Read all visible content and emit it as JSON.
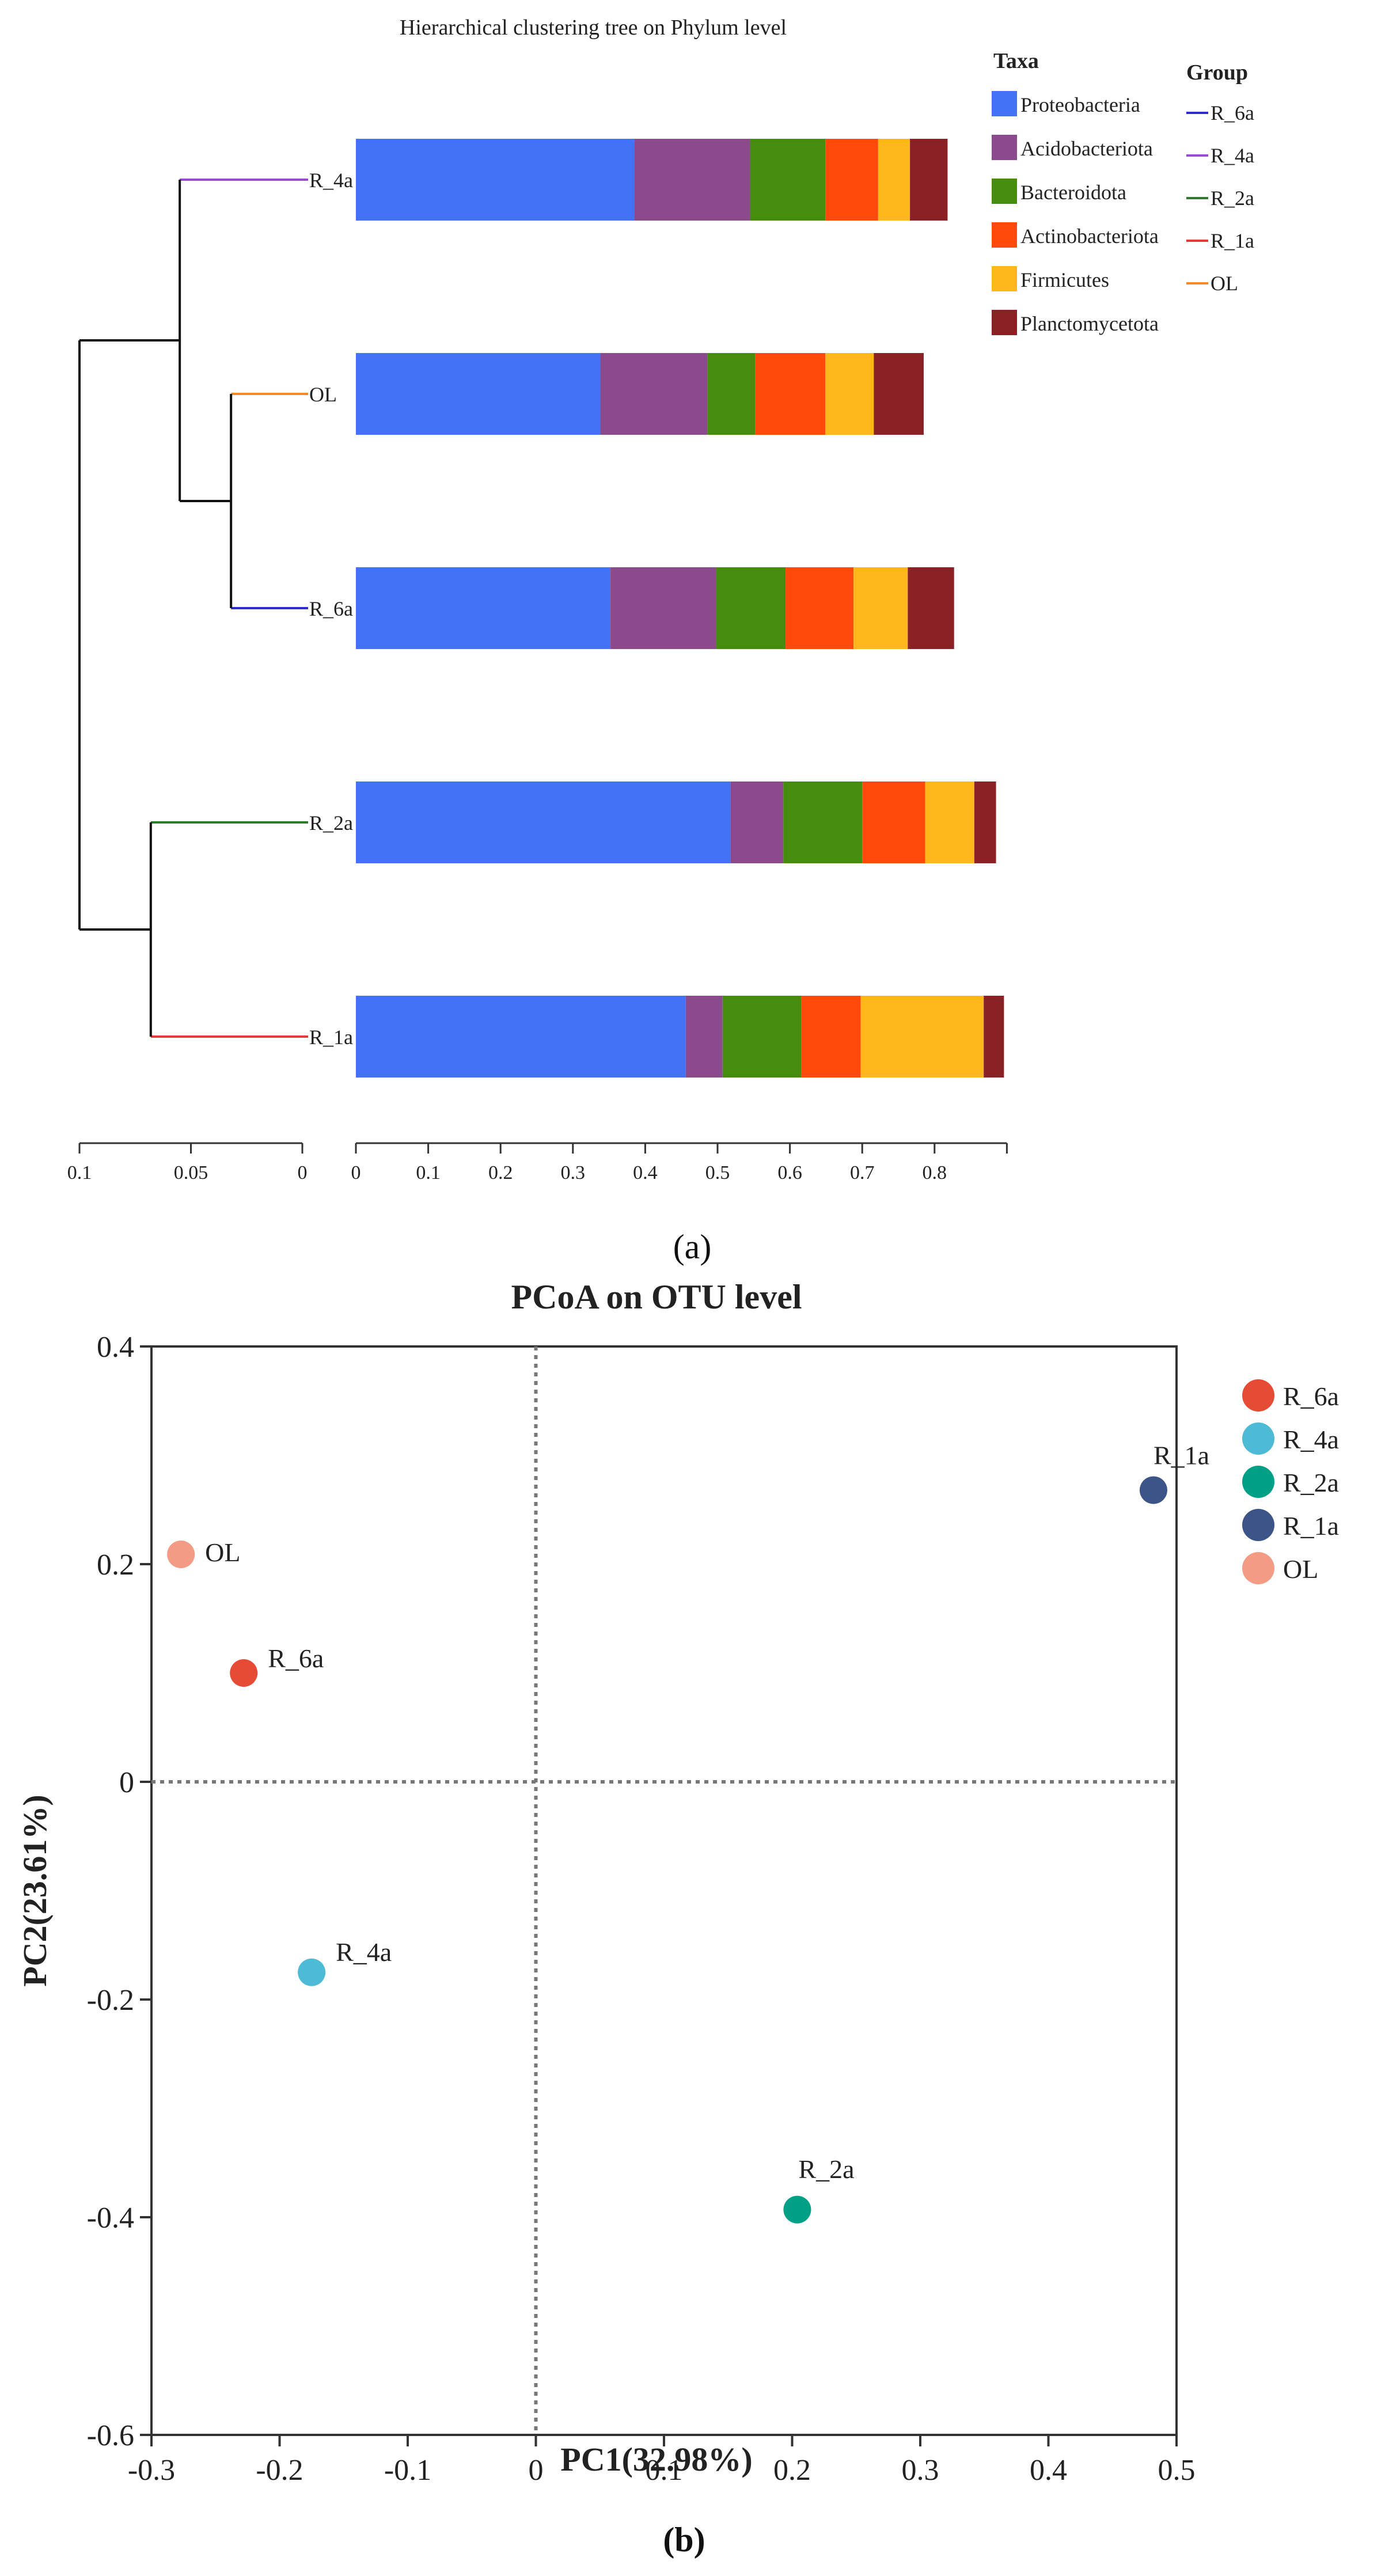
{
  "chart_data": [
    {
      "type": "bar",
      "subtype": "stacked-horizontal-with-dendrogram",
      "title": "Hierarchical clustering tree on Phylum level",
      "categories": [
        "R_4a",
        "OL",
        "R_6a",
        "R_2a",
        "R_1a"
      ],
      "series": [
        {
          "name": "Proteobacteria",
          "color": "#4472f6",
          "values": [
            0.385,
            0.338,
            0.352,
            0.518,
            0.456
          ]
        },
        {
          "name": "Acidobacteriota",
          "color": "#8b4a8c",
          "values": [
            0.16,
            0.148,
            0.146,
            0.073,
            0.051
          ]
        },
        {
          "name": "Bacteroidota",
          "color": "#468c0f",
          "values": [
            0.104,
            0.066,
            0.096,
            0.109,
            0.109
          ]
        },
        {
          "name": "Actinobacteriota",
          "color": "#ff4a0c",
          "values": [
            0.073,
            0.097,
            0.094,
            0.087,
            0.082
          ]
        },
        {
          "name": "Firmicutes",
          "color": "#ffb81c",
          "values": [
            0.044,
            0.067,
            0.075,
            0.068,
            0.17
          ]
        },
        {
          "name": "Planctomycetota",
          "color": "#8a2124",
          "values": [
            0.052,
            0.069,
            0.064,
            0.03,
            0.028
          ]
        }
      ],
      "xlim": [
        0,
        0.9
      ],
      "xticks": [
        "0",
        "0.1",
        "0.2",
        "0.3",
        "0.4",
        "0.5",
        "0.6",
        "0.7",
        "0.8"
      ],
      "legend_title": "Taxa",
      "group_legend": {
        "title": "Group",
        "items": [
          {
            "label": "R_6a",
            "color": "#2c2ccf"
          },
          {
            "label": "R_4a",
            "color": "#9b4bd1"
          },
          {
            "label": "R_2a",
            "color": "#2d7a2d"
          },
          {
            "label": "R_1a",
            "color": "#e53a3a"
          },
          {
            "label": "OL",
            "color": "#f08a2c"
          }
        ]
      },
      "dendrogram": {
        "scale_ticks": [
          "0.1",
          "0.05",
          "0"
        ],
        "scale_range": [
          0.1,
          0
        ],
        "root_height": 0.1,
        "clusters": [
          {
            "members": [
              "OL",
              "R_6a"
            ],
            "height": 0.032
          },
          {
            "members": [
              "R_4a",
              "OL",
              "R_6a"
            ],
            "height": 0.055
          },
          {
            "members": [
              "R_2a",
              "R_1a"
            ],
            "height": 0.068
          }
        ],
        "leaf_colors": {
          "R_4a": "#9b4bd1",
          "OL": "#f08a2c",
          "R_6a": "#2c2ccf",
          "R_2a": "#2d7a2d",
          "R_1a": "#e53a3a"
        }
      },
      "panel_label": "(a)"
    },
    {
      "type": "scatter",
      "title": "PCoA on OTU level",
      "xlabel": "PC1(32.98%)",
      "ylabel": "PC2(23.61%)",
      "xlim": [
        -0.3,
        0.5
      ],
      "ylim": [
        -0.6,
        0.4
      ],
      "xticks": [
        "-0.3",
        "-0.2",
        "-0.1",
        "0",
        "0.1",
        "0.2",
        "0.3",
        "0.4",
        "0.5"
      ],
      "yticks": [
        "0.4",
        "0.2",
        "0",
        "-0.2",
        "-0.4",
        "-0.6"
      ],
      "points": [
        {
          "label": "OL",
          "x": -0.277,
          "y": 0.209,
          "color": "#f39b84"
        },
        {
          "label": "R_6a",
          "x": -0.228,
          "y": 0.1,
          "color": "#e64b35"
        },
        {
          "label": "R_4a",
          "x": -0.175,
          "y": -0.175,
          "color": "#4dbbd5"
        },
        {
          "label": "R_2a",
          "x": 0.204,
          "y": -0.393,
          "color": "#00a087"
        },
        {
          "label": "R_1a",
          "x": 0.482,
          "y": 0.268,
          "color": "#3c5488"
        }
      ],
      "legend": [
        {
          "label": "R_6a",
          "color": "#e64b35"
        },
        {
          "label": "R_4a",
          "color": "#4dbbd5"
        },
        {
          "label": "R_2a",
          "color": "#00a087"
        },
        {
          "label": "R_1a",
          "color": "#3c5488"
        },
        {
          "label": "OL",
          "color": "#f39b84"
        }
      ],
      "reference_lines": {
        "x": 0,
        "y": 0
      },
      "panel_label": "(b)"
    }
  ]
}
